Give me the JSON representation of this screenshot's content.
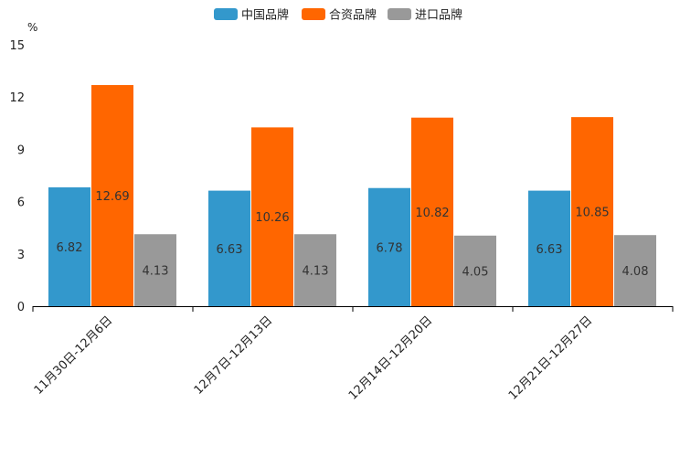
{
  "chart_data": {
    "type": "bar",
    "title": "",
    "xlabel": "",
    "ylabel": "%",
    "ylim": [
      0,
      15
    ],
    "yticks": [
      0,
      3,
      6,
      9,
      12,
      15
    ],
    "grid": false,
    "legend_position": "top-center",
    "categories": [
      "11月30日-12月6日",
      "12月7日-12月13日",
      "12月14日-12月20日",
      "12月21日-12月27日"
    ],
    "series": [
      {
        "name": "中国品牌",
        "color": "#3398cc",
        "values": [
          6.82,
          6.63,
          6.78,
          6.63
        ]
      },
      {
        "name": "合资品牌",
        "color": "#ff6600",
        "values": [
          12.69,
          10.26,
          10.82,
          10.85
        ]
      },
      {
        "name": "进口品牌",
        "color": "#999999",
        "values": [
          4.13,
          4.13,
          4.05,
          4.08
        ]
      }
    ]
  }
}
